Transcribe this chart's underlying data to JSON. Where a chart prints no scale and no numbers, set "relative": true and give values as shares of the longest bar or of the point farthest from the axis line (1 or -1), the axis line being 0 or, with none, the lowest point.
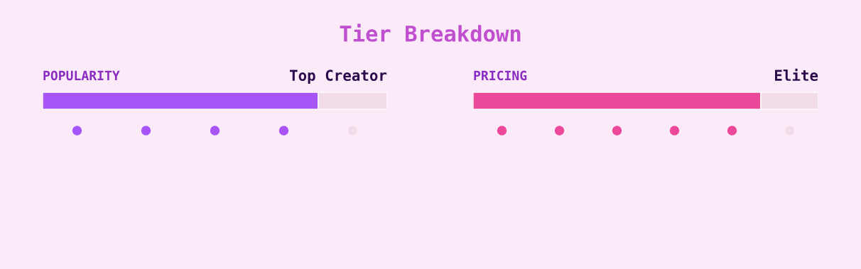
{
  "chart_data": [
    {
      "type": "bar",
      "title": "Tier Breakdown",
      "subtitle": "POPULARITY",
      "annotations": [
        "Top Creator"
      ],
      "orientation": "horizontal",
      "stacked": true,
      "relative": true,
      "categories": [
        null
      ],
      "series": [
        {
          "color": "#a855f7",
          "values": [
            0.8
          ]
        },
        {
          "color": "#f3dce9",
          "values": [
            0.2
          ]
        }
      ]
    },
    {
      "type": "bar",
      "subtitle": "PRICING",
      "annotations": [
        "Elite"
      ],
      "orientation": "horizontal",
      "stacked": true,
      "relative": true,
      "categories": [
        null
      ],
      "series": [
        {
          "color": "#ec4899",
          "values": [
            0.833
          ]
        },
        {
          "color": "#f3dce9",
          "values": [
            0.167
          ]
        }
      ]
    }
  ]
}
